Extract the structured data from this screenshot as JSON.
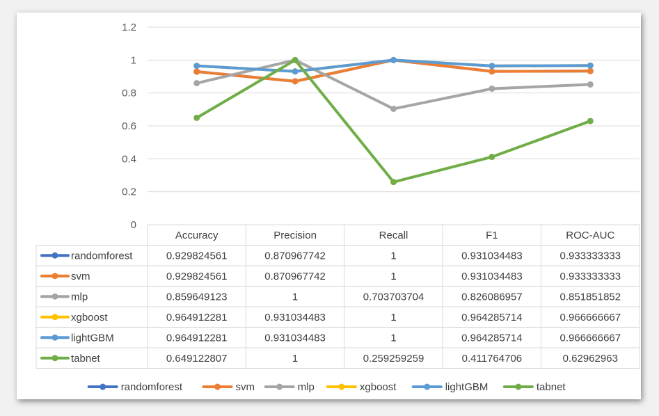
{
  "chart_data": {
    "type": "line",
    "categories": [
      "Accuracy",
      "Precision",
      "Recall",
      "F1",
      "ROC-AUC"
    ],
    "ylim": [
      0,
      1.2
    ],
    "yticks": [
      "0",
      "0.2",
      "0.4",
      "0.6",
      "0.8",
      "1",
      "1.2"
    ],
    "grid": true,
    "legend_position": "bottom",
    "data_table": true,
    "series": [
      {
        "name": "randomforest",
        "color": "#4472c4",
        "values": [
          0.929824561,
          0.870967742,
          1,
          0.931034483,
          0.933333333
        ],
        "labels": [
          "0.929824561",
          "0.870967742",
          "1",
          "0.931034483",
          "0.933333333"
        ]
      },
      {
        "name": "svm",
        "color": "#ed7d31",
        "values": [
          0.929824561,
          0.870967742,
          1,
          0.931034483,
          0.933333333
        ],
        "labels": [
          "0.929824561",
          "0.870967742",
          "1",
          "0.931034483",
          "0.933333333"
        ]
      },
      {
        "name": "mlp",
        "color": "#a5a5a5",
        "values": [
          0.859649123,
          1,
          0.703703704,
          0.826086957,
          0.851851852
        ],
        "labels": [
          "0.859649123",
          "1",
          "0.703703704",
          "0.826086957",
          "0.851851852"
        ]
      },
      {
        "name": "xgboost",
        "color": "#ffc000",
        "values": [
          0.964912281,
          0.931034483,
          1,
          0.964285714,
          0.966666667
        ],
        "labels": [
          "0.964912281",
          "0.931034483",
          "1",
          "0.964285714",
          "0.966666667"
        ]
      },
      {
        "name": "lightGBM",
        "color": "#5b9bd5",
        "values": [
          0.964912281,
          0.931034483,
          1,
          0.964285714,
          0.966666667
        ],
        "labels": [
          "0.964912281",
          "0.931034483",
          "1",
          "0.964285714",
          "0.966666667"
        ]
      },
      {
        "name": "tabnet",
        "color": "#70ad47",
        "values": [
          0.649122807,
          1,
          0.259259259,
          0.411764706,
          0.62962963
        ],
        "labels": [
          "0.649122807",
          "1",
          "0.259259259",
          "0.411764706",
          "0.62962963"
        ]
      }
    ]
  }
}
